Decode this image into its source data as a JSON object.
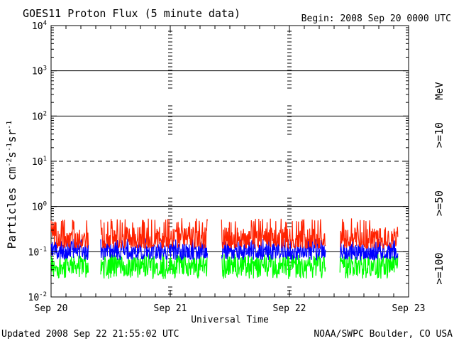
{
  "chart_data": {
    "type": "line",
    "title": "GOES11 Proton Flux (5 minute data)",
    "begin_label": "Begin: 2008 Sep 20 0000 UTC",
    "ylabel": "Particles cm",
    "ylabel_exp1": "-2",
    "ylabel_s": "s",
    "ylabel_exp2": "-1",
    "ylabel_sr": "sr",
    "ylabel_exp3": "-1",
    "xlabel": "Universal Time",
    "yscale": "log",
    "ylim": [
      0.01,
      10000
    ],
    "y_tick_labels": [
      {
        "base": "10",
        "exp": "-2",
        "value": 0.01
      },
      {
        "base": "10",
        "exp": "-1",
        "value": 0.1
      },
      {
        "base": "10",
        "exp": "0",
        "value": 1
      },
      {
        "base": "10",
        "exp": "1",
        "value": 10
      },
      {
        "base": "10",
        "exp": "2",
        "value": 100
      },
      {
        "base": "10",
        "exp": "3",
        "value": 1000
      },
      {
        "base": "10",
        "exp": "4",
        "value": 10000
      }
    ],
    "threshold_lines": [
      {
        "value": 0.1,
        "style": "solid"
      },
      {
        "value": 1,
        "style": "solid"
      },
      {
        "value": 10,
        "style": "dashed"
      },
      {
        "value": 100,
        "style": "solid"
      },
      {
        "value": 1000,
        "style": "solid"
      }
    ],
    "x_ticks": [
      "Sep 20",
      "Sep 21",
      "Sep 22",
      "Sep 23"
    ],
    "xlim_hours": [
      0,
      72
    ],
    "data_gaps_hours": [
      [
        7.5,
        10.0
      ],
      [
        31.5,
        34.3
      ],
      [
        55.3,
        58.1
      ]
    ],
    "data_end_hours": 69.9,
    "series": [
      {
        "name": ">=10",
        "color": "#ff2200",
        "typical": 0.2,
        "min": 0.12,
        "max": 0.55
      },
      {
        "name": ">=50",
        "color": "#0000ff",
        "typical": 0.1,
        "min": 0.065,
        "max": 0.2
      },
      {
        "name": ">=100",
        "color": "#00ff00",
        "typical": 0.05,
        "min": 0.025,
        "max": 0.09
      }
    ],
    "legend_unit": "MeV"
  },
  "footer": {
    "updated": "Updated 2008 Sep 22 21:55:02 UTC",
    "source": "NOAA/SWPC Boulder, CO USA"
  }
}
